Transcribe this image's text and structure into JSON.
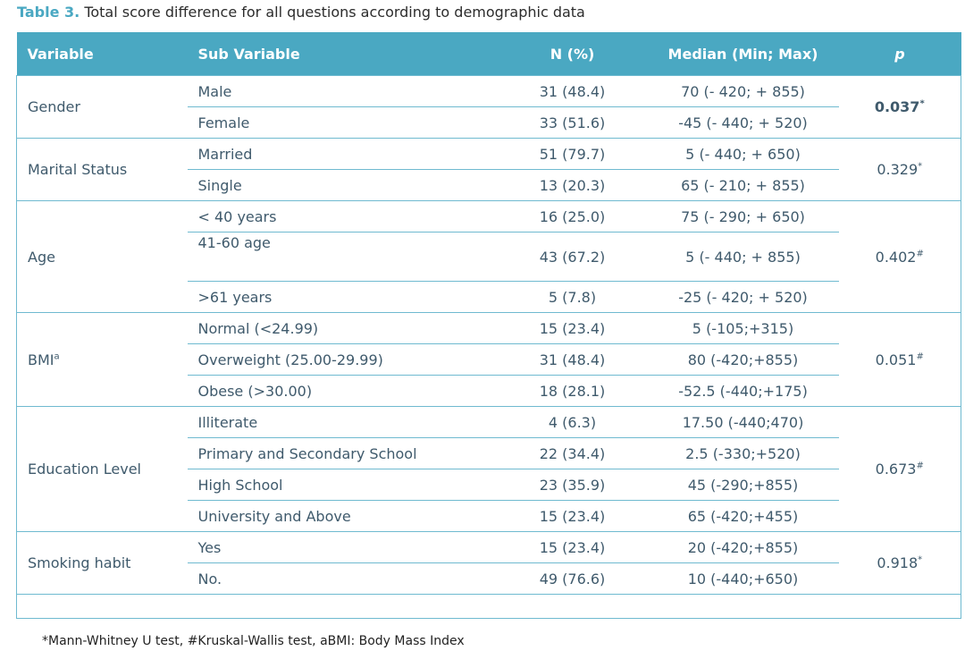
{
  "caption": {
    "label": "Table 3.",
    "text": "Total score difference for all questions according to demographic data"
  },
  "headers": {
    "variable": "Variable",
    "sub": "Sub Variable",
    "n": "N (%)",
    "median": "Median (Min; Max)",
    "p": "p"
  },
  "groups": [
    {
      "variable": "Gender",
      "p": "0.037",
      "p_mark": "*",
      "rows": [
        {
          "sub": "Male",
          "n": "31 (48.4)",
          "median": "70 (- 420; + 855)"
        },
        {
          "sub": "Female",
          "n": "33 (51.6)",
          "median": "-45 (- 440; + 520)"
        }
      ]
    },
    {
      "variable": "Marital Status",
      "p": "0.329",
      "p_mark": "*",
      "rows": [
        {
          "sub": "Married",
          "n": "51 (79.7)",
          "median": "5 (- 440; + 650)"
        },
        {
          "sub": "Single",
          "n": "13 (20.3)",
          "median": "65 (- 210; + 855)"
        }
      ]
    },
    {
      "variable": "Age",
      "p": "0.402",
      "p_mark": "#",
      "rows": [
        {
          "sub": "< 40 years",
          "n": "16 (25.0)",
          "median": "75 (- 290; + 650)"
        },
        {
          "sub": "41-60  age",
          "n": "43 (67.2)",
          "median": "5 (- 440; + 855)"
        },
        {
          "sub": ">61 years",
          "n": "5 (7.8)",
          "median": "-25 (- 420; + 520)"
        }
      ]
    },
    {
      "variable": "BMI",
      "var_mark": "a",
      "p": "0.051",
      "p_mark": "#",
      "rows": [
        {
          "sub": "Normal (<24.99)",
          "n": "15 (23.4)",
          "median": "5 (-105;+315)"
        },
        {
          "sub": "Overweight (25.00-29.99)",
          "n": "31 (48.4)",
          "median": "80 (-420;+855)"
        },
        {
          "sub": "Obese (>30.00)",
          "n": "18 (28.1)",
          "median": "-52.5 (-440;+175)"
        }
      ]
    },
    {
      "variable": "Education Level",
      "p": "0.673",
      "p_mark": "#",
      "rows": [
        {
          "sub": "Illiterate",
          "n": "4 (6.3)",
          "median": "17.50 (-440;470)"
        },
        {
          "sub": "Primary and Secondary School",
          "n": "22 (34.4)",
          "median": "2.5 (-330;+520)"
        },
        {
          "sub": "High School",
          "n": "23 (35.9)",
          "median": "45 (-290;+855)"
        },
        {
          "sub": "University and Above",
          "n": "15 (23.4)",
          "median": "65 (-420;+455)"
        }
      ]
    },
    {
      "variable": "Smoking habit",
      "p": "0.918",
      "p_mark": "*",
      "rows": [
        {
          "sub": "Yes",
          "n": "15 (23.4)",
          "median": "20 (-420;+855)"
        },
        {
          "sub": "No.",
          "n": "49 (76.6)",
          "median": "10 (-440;+650)"
        }
      ]
    }
  ],
  "footnote": "*Mann-Whitney U test, #Kruskal-Wallis test, aBMI: Body Mass Index"
}
